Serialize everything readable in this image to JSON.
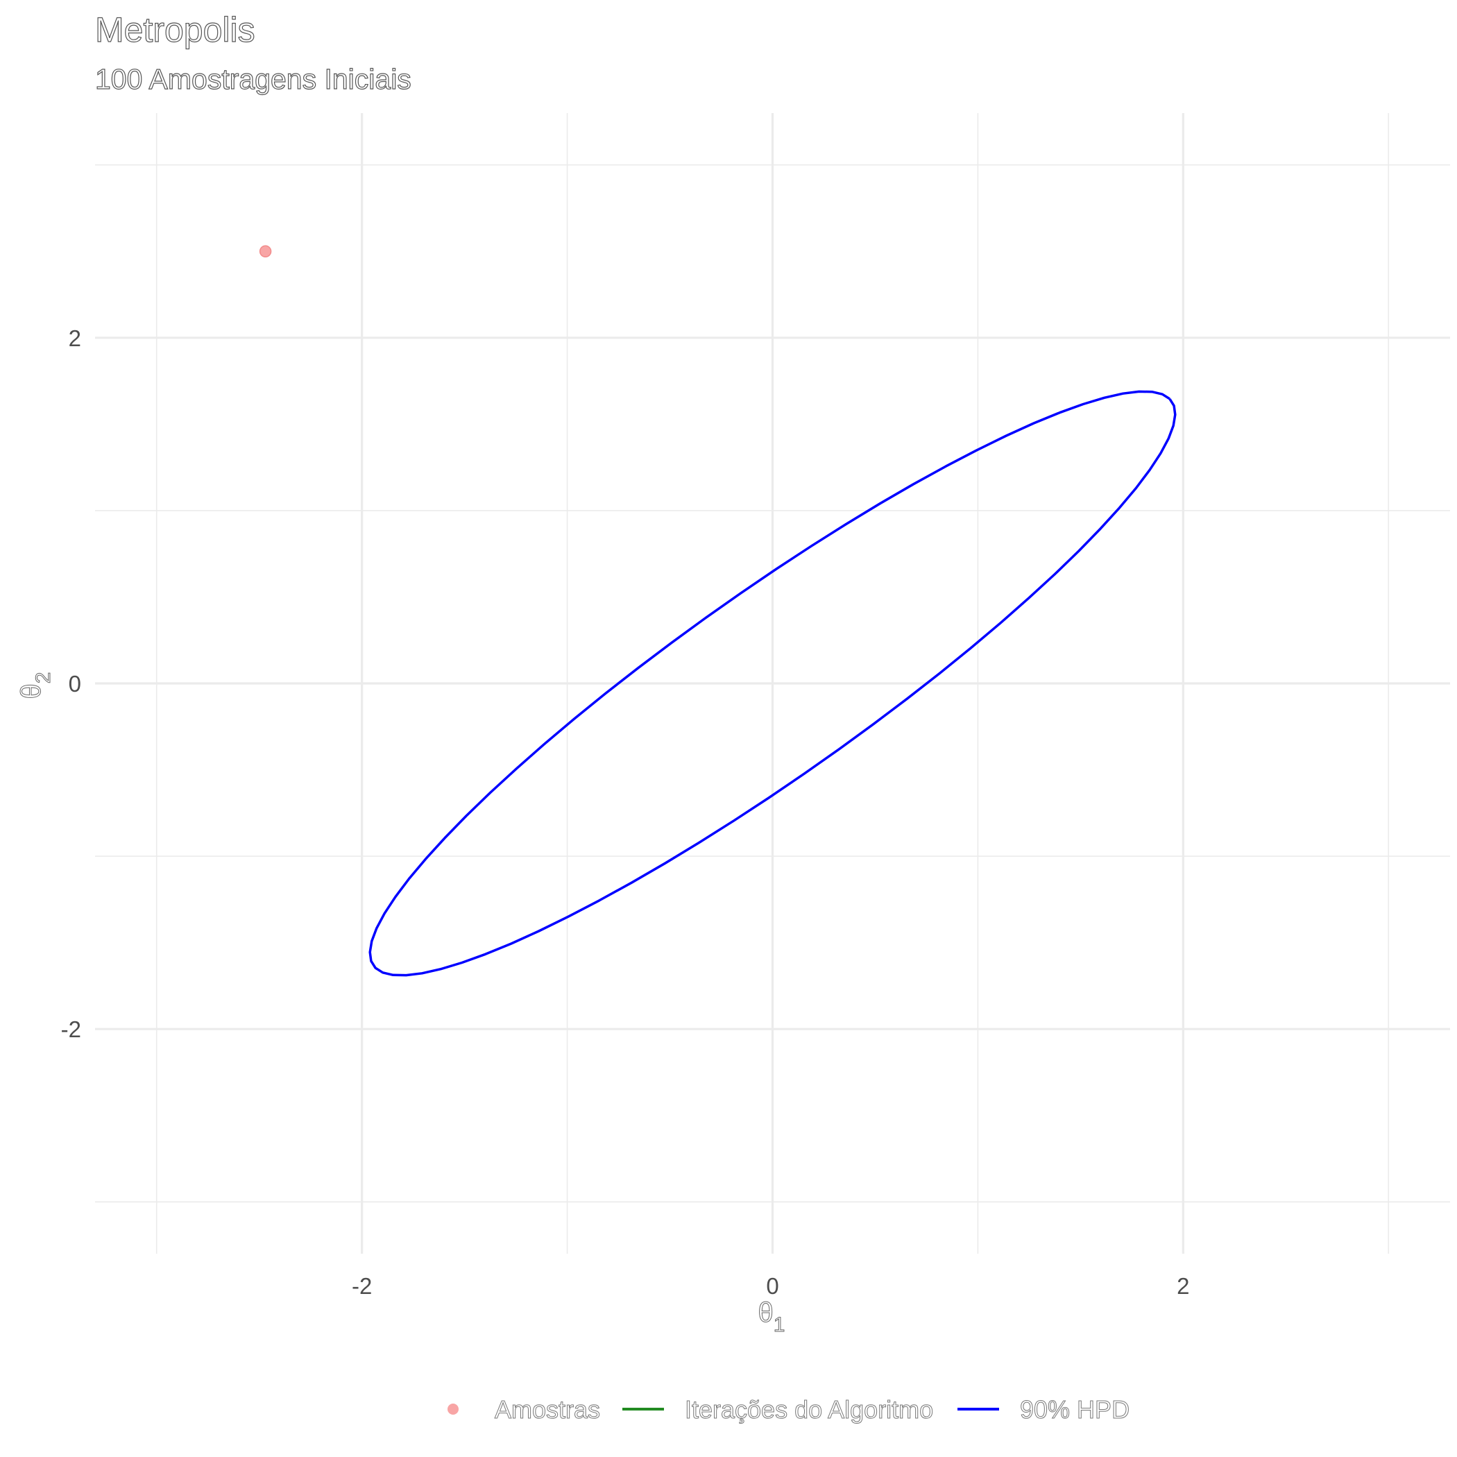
{
  "chart_data": {
    "type": "scatter",
    "title": "Metropolis",
    "subtitle": "100 Amostragens Iniciais",
    "xlabel": "θ",
    "xlabel_sub": "1",
    "ylabel": "θ",
    "ylabel_sub": "2",
    "xlim": [
      -3.3,
      3.3
    ],
    "ylim": [
      -3.3,
      3.3
    ],
    "x_ticks": [
      -2,
      0,
      2
    ],
    "y_ticks": [
      -2,
      0,
      2
    ],
    "x_tick_labels": [
      "-2",
      "0",
      "2"
    ],
    "y_tick_labels": [
      "-2",
      "0",
      "2"
    ],
    "x_minor": [
      -3,
      -1,
      1,
      3
    ],
    "y_minor": [
      -3,
      -1,
      1,
      3
    ],
    "grid": true,
    "legend_position": "bottom",
    "series": [
      {
        "name": "Amostras",
        "kind": "points",
        "color": "#f8a5a5",
        "points": [
          [
            -2.47,
            2.5
          ]
        ]
      },
      {
        "name": "Iterações do Algoritmo",
        "kind": "path",
        "color": "#228b22",
        "points": []
      },
      {
        "name": "90% HPD",
        "kind": "ellipse",
        "color": "#0000ff",
        "center": [
          0,
          0
        ],
        "semi_axes": [
          2.54,
          0.5
        ],
        "angle_deg": 40.4
      }
    ]
  }
}
